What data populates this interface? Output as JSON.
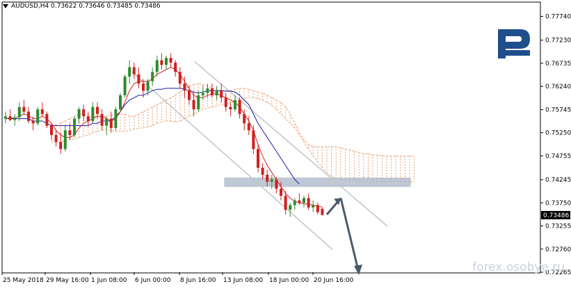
{
  "header": {
    "symbol": "AUDUSD,H4",
    "open": "0.73622",
    "high": "0.73646",
    "low": "0.73485",
    "close": "0.73486"
  },
  "watermark": "forex.osobye.ru",
  "logo_color": "#1f4e8c",
  "colors": {
    "bull": "#2e8b2e",
    "bear": "#d11f1f",
    "tenkan": "#d62020",
    "kijun": "#1a1aa8",
    "cloud": "#e8a070",
    "zone": "#aab8c8",
    "arrow": "#4a5a6a",
    "channel": "#c0c4c8",
    "price_box": "#000000"
  },
  "chart_data": {
    "type": "candlestick",
    "symbol": "AUDUSD",
    "timeframe": "H4",
    "ylim": [
      0.72265,
      0.7803
    ],
    "y_ticks": [
      "0.77740",
      "0.77230",
      "0.76735",
      "0.76240",
      "0.75745",
      "0.75250",
      "0.74755",
      "0.74245",
      "0.73750",
      "0.73255",
      "0.72760",
      "0.72265"
    ],
    "x_ticks": [
      "25 May 2018",
      "29 May 16:00",
      "1 Jun 08:00",
      "6 Jun 00:00",
      "8 Jun 16:00",
      "13 Jun 08:00",
      "18 Jun 00:00",
      "20 Jun 16:00"
    ],
    "current_price": "0.73486",
    "ohlc": [
      [
        0.7555,
        0.757,
        0.7545,
        0.756
      ],
      [
        0.756,
        0.7575,
        0.755,
        0.7552
      ],
      [
        0.7552,
        0.7565,
        0.754,
        0.7558
      ],
      [
        0.7558,
        0.759,
        0.755,
        0.758
      ],
      [
        0.758,
        0.7595,
        0.7565,
        0.757
      ],
      [
        0.757,
        0.758,
        0.7545,
        0.755
      ],
      [
        0.755,
        0.756,
        0.753,
        0.7545
      ],
      [
        0.7545,
        0.758,
        0.754,
        0.7575
      ],
      [
        0.7575,
        0.759,
        0.756,
        0.7565
      ],
      [
        0.7565,
        0.757,
        0.7535,
        0.754
      ],
      [
        0.754,
        0.7545,
        0.751,
        0.752
      ],
      [
        0.752,
        0.753,
        0.7495,
        0.7505
      ],
      [
        0.7505,
        0.7525,
        0.748,
        0.749
      ],
      [
        0.749,
        0.754,
        0.7485,
        0.753
      ],
      [
        0.753,
        0.7545,
        0.751,
        0.752
      ],
      [
        0.752,
        0.756,
        0.7515,
        0.7555
      ],
      [
        0.7555,
        0.758,
        0.7545,
        0.7575
      ],
      [
        0.7575,
        0.7585,
        0.755,
        0.756
      ],
      [
        0.756,
        0.757,
        0.754,
        0.755
      ],
      [
        0.755,
        0.759,
        0.7545,
        0.758
      ],
      [
        0.758,
        0.759,
        0.7555,
        0.7565
      ],
      [
        0.7565,
        0.7575,
        0.753,
        0.754
      ],
      [
        0.754,
        0.756,
        0.752,
        0.7555
      ],
      [
        0.7555,
        0.757,
        0.7525,
        0.7535
      ],
      [
        0.7535,
        0.758,
        0.753,
        0.7575
      ],
      [
        0.7575,
        0.761,
        0.757,
        0.7605
      ],
      [
        0.7605,
        0.765,
        0.76,
        0.7645
      ],
      [
        0.7645,
        0.768,
        0.763,
        0.7665
      ],
      [
        0.7665,
        0.7675,
        0.764,
        0.765
      ],
      [
        0.765,
        0.7665,
        0.762,
        0.763
      ],
      [
        0.763,
        0.764,
        0.76,
        0.7615
      ],
      [
        0.7615,
        0.764,
        0.7605,
        0.7635
      ],
      [
        0.7635,
        0.7665,
        0.7625,
        0.7655
      ],
      [
        0.7655,
        0.769,
        0.7645,
        0.768
      ],
      [
        0.768,
        0.7695,
        0.766,
        0.767
      ],
      [
        0.767,
        0.769,
        0.766,
        0.7685
      ],
      [
        0.7685,
        0.7695,
        0.7665,
        0.7675
      ],
      [
        0.7675,
        0.768,
        0.7645,
        0.7655
      ],
      [
        0.7655,
        0.7665,
        0.762,
        0.763
      ],
      [
        0.763,
        0.7645,
        0.76,
        0.7615
      ],
      [
        0.7615,
        0.7625,
        0.7585,
        0.7595
      ],
      [
        0.7595,
        0.761,
        0.756,
        0.7575
      ],
      [
        0.7575,
        0.7615,
        0.757,
        0.7605
      ],
      [
        0.7605,
        0.7625,
        0.7595,
        0.761
      ],
      [
        0.761,
        0.763,
        0.76,
        0.762
      ],
      [
        0.762,
        0.763,
        0.76,
        0.7605
      ],
      [
        0.7605,
        0.7625,
        0.7595,
        0.7615
      ],
      [
        0.7615,
        0.763,
        0.759,
        0.76
      ],
      [
        0.76,
        0.761,
        0.757,
        0.758
      ],
      [
        0.758,
        0.759,
        0.756,
        0.7575
      ],
      [
        0.7575,
        0.7605,
        0.757,
        0.7595
      ],
      [
        0.7595,
        0.76,
        0.7555,
        0.7565
      ],
      [
        0.7565,
        0.7575,
        0.753,
        0.7545
      ],
      [
        0.7545,
        0.756,
        0.752,
        0.753
      ],
      [
        0.753,
        0.754,
        0.748,
        0.749
      ],
      [
        0.749,
        0.75,
        0.744,
        0.745
      ],
      [
        0.745,
        0.746,
        0.7425,
        0.7435
      ],
      [
        0.7435,
        0.7445,
        0.741,
        0.742
      ],
      [
        0.742,
        0.7435,
        0.7405,
        0.7425
      ],
      [
        0.7425,
        0.743,
        0.7395,
        0.7405
      ],
      [
        0.7405,
        0.742,
        0.738,
        0.739
      ],
      [
        0.739,
        0.74,
        0.735,
        0.736
      ],
      [
        0.736,
        0.7375,
        0.7345,
        0.737
      ],
      [
        0.737,
        0.7385,
        0.736,
        0.738
      ],
      [
        0.738,
        0.7395,
        0.737,
        0.7375
      ],
      [
        0.7375,
        0.739,
        0.7365,
        0.7385
      ],
      [
        0.7385,
        0.7395,
        0.736,
        0.7365
      ],
      [
        0.7365,
        0.738,
        0.7355,
        0.737
      ],
      [
        0.737,
        0.7375,
        0.735,
        0.7355
      ],
      [
        0.7362,
        0.7365,
        0.7348,
        0.7349
      ]
    ],
    "tenkan": [
      0.7555,
      0.7556,
      0.7556,
      0.756,
      0.7565,
      0.7562,
      0.7555,
      0.7555,
      0.756,
      0.7555,
      0.7545,
      0.753,
      0.752,
      0.7515,
      0.7515,
      0.752,
      0.7535,
      0.7545,
      0.755,
      0.7555,
      0.756,
      0.756,
      0.7555,
      0.755,
      0.7555,
      0.757,
      0.759,
      0.7615,
      0.763,
      0.7635,
      0.7635,
      0.7635,
      0.764,
      0.765,
      0.7655,
      0.766,
      0.7665,
      0.766,
      0.765,
      0.7635,
      0.762,
      0.7605,
      0.76,
      0.76,
      0.7605,
      0.7608,
      0.7608,
      0.7605,
      0.76,
      0.7595,
      0.759,
      0.758,
      0.7565,
      0.755,
      0.753,
      0.75,
      0.7475,
      0.7455,
      0.744,
      0.7425,
      0.741,
      0.7395,
      0.7385,
      0.7378,
      0.7375,
      0.7373,
      0.7372,
      0.737,
      0.7368,
      0.7366
    ],
    "kijun": [
      0.7555,
      0.7555,
      0.7555,
      0.7555,
      0.7555,
      0.7555,
      0.755,
      0.755,
      0.755,
      0.7545,
      0.754,
      0.754,
      0.754,
      0.754,
      0.754,
      0.754,
      0.754,
      0.754,
      0.754,
      0.7545,
      0.7545,
      0.755,
      0.755,
      0.755,
      0.756,
      0.757,
      0.7585,
      0.7595,
      0.76,
      0.7605,
      0.7605,
      0.761,
      0.7615,
      0.7618,
      0.7618,
      0.762,
      0.762,
      0.762,
      0.762,
      0.7618,
      0.7615,
      0.7612,
      0.761,
      0.7612,
      0.7615,
      0.7615,
      0.7615,
      0.7615,
      0.7614,
      0.7614,
      0.7612,
      0.7605,
      0.7595,
      0.7585,
      0.7565,
      0.7545,
      0.753,
      0.7515,
      0.75,
      0.7485,
      0.747,
      0.7455,
      0.744,
      0.7425,
      0.7415
    ],
    "cloud_upper": [
      0.754,
      0.7542,
      0.7545,
      0.755,
      0.7555,
      0.756,
      0.7565,
      0.7565,
      0.7562,
      0.756,
      0.756,
      0.756,
      0.756,
      0.7562,
      0.7565,
      0.7565,
      0.7565,
      0.756,
      0.756,
      0.7565,
      0.757,
      0.7575,
      0.758,
      0.7585,
      0.759,
      0.7595,
      0.76,
      0.7605,
      0.7612,
      0.7618,
      0.7625,
      0.7628,
      0.763,
      0.7628,
      0.7625,
      0.762,
      0.7618,
      0.7615,
      0.7615,
      0.7615,
      0.7618,
      0.762,
      0.762,
      0.7618,
      0.7615,
      0.7612,
      0.761,
      0.7605,
      0.76,
      0.7595,
      0.759,
      0.758,
      0.7565,
      0.7545,
      0.7525,
      0.751,
      0.75,
      0.7495,
      0.7495,
      0.7495,
      0.7495,
      0.7495,
      0.7495,
      0.7493,
      0.749,
      0.7488,
      0.7485,
      0.7483,
      0.748,
      0.748,
      0.7478,
      0.7477,
      0.7476,
      0.7475,
      0.7475,
      0.7475,
      0.7475,
      0.7475,
      0.7475,
      0.7475
    ],
    "cloud_lower": [
      0.7505,
      0.7505,
      0.7505,
      0.7508,
      0.751,
      0.7512,
      0.7515,
      0.7518,
      0.752,
      0.7525,
      0.7528,
      0.753,
      0.7532,
      0.753,
      0.7528,
      0.7528,
      0.7528,
      0.753,
      0.7532,
      0.7535,
      0.7535,
      0.7537,
      0.754,
      0.7545,
      0.7548,
      0.755,
      0.755,
      0.7548,
      0.755,
      0.7555,
      0.756,
      0.7565,
      0.757,
      0.7575,
      0.7578,
      0.758,
      0.7582,
      0.7585,
      0.7588,
      0.759,
      0.7592,
      0.7595,
      0.7598,
      0.76,
      0.76,
      0.7598,
      0.7595,
      0.759,
      0.7583,
      0.7575,
      0.7565,
      0.7555,
      0.7545,
      0.7535,
      0.752,
      0.7505,
      0.749,
      0.7475,
      0.7462,
      0.745,
      0.744,
      0.7432,
      0.7428,
      0.7425,
      0.7423,
      0.7422,
      0.7421,
      0.742,
      0.742,
      0.742,
      0.742,
      0.742,
      0.742,
      0.742,
      0.742,
      0.742,
      0.742,
      0.742,
      0.742,
      0.742
    ]
  }
}
